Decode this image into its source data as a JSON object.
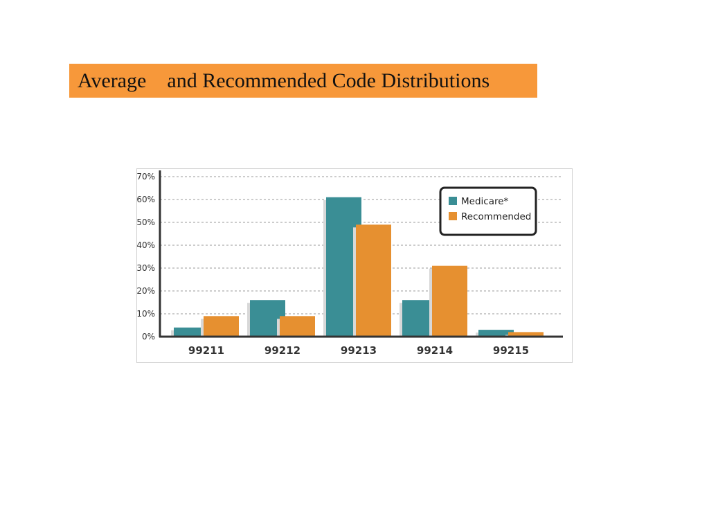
{
  "slide": {
    "title": "Average    and Recommended Code Distributions"
  },
  "chart_data": {
    "type": "bar",
    "categories": [
      "99211",
      "99212",
      "99213",
      "99214",
      "99215"
    ],
    "series": [
      {
        "name": "Medicare*",
        "values": [
          4,
          16,
          61,
          16,
          3
        ],
        "color": "#3a8e95"
      },
      {
        "name": "Recommended",
        "values": [
          9,
          9,
          49,
          31,
          2
        ],
        "color": "#e69030"
      }
    ],
    "yticks": [
      0,
      10,
      20,
      30,
      40,
      50,
      60,
      70
    ],
    "ytick_suffix": "%",
    "ylim": [
      0,
      70
    ],
    "grid": true,
    "legend_position": "top-right",
    "title": "",
    "xlabel": "",
    "ylabel": ""
  }
}
